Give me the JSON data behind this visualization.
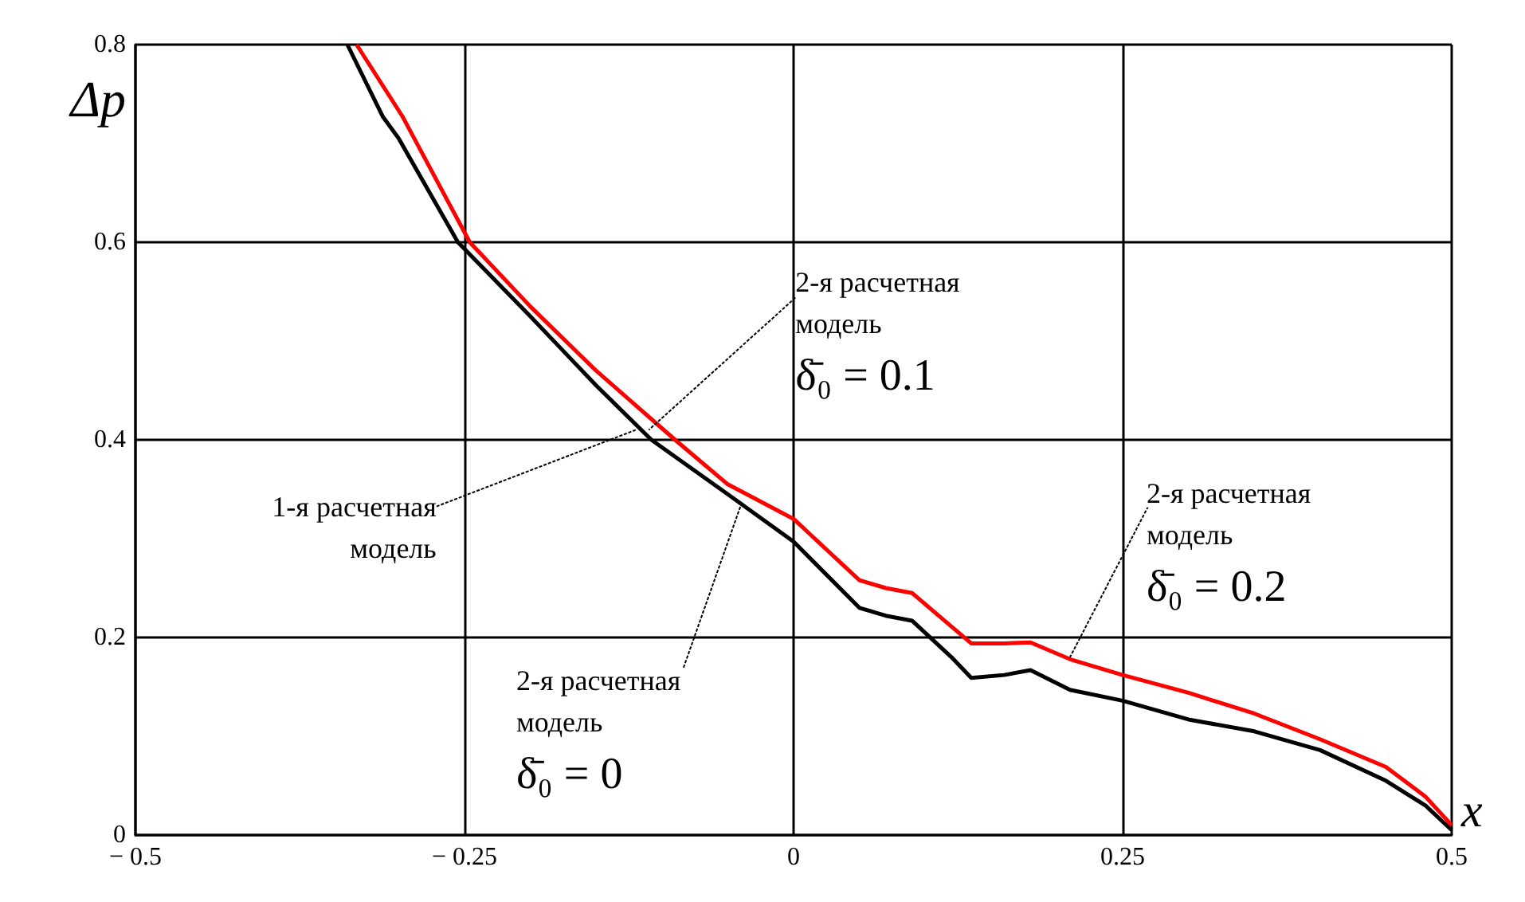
{
  "chart_data": {
    "type": "line",
    "xlabel": "x",
    "ylabel": "Δp",
    "xlim": [
      -0.5,
      0.5
    ],
    "ylim": [
      0,
      0.8
    ],
    "xticks": [
      {
        "value": -0.5,
        "label": "− 0.5"
      },
      {
        "value": -0.25,
        "label": "− 0.25"
      },
      0,
      0.25,
      0.5
    ],
    "yticks": [
      0,
      0.2,
      0.4,
      0.6,
      0.8
    ],
    "grid": true,
    "marker": "none",
    "line_style": "solid",
    "series": [
      {
        "color": "#000000",
        "x": [
          -0.339,
          -0.312,
          -0.3,
          -0.255,
          -0.2,
          -0.175,
          -0.15,
          -0.108,
          -0.05,
          0,
          0.05,
          0.07,
          0.09,
          0.12,
          0.135,
          0.16,
          0.18,
          0.21,
          0.25,
          0.3,
          0.35,
          0.4,
          0.45,
          0.48,
          0.5
        ],
        "values": [
          0.8,
          0.727,
          0.705,
          0.6,
          0.525,
          0.49,
          0.455,
          0.4,
          0.345,
          0.297,
          0.23,
          0.222,
          0.217,
          0.18,
          0.159,
          0.162,
          0.167,
          0.147,
          0.136,
          0.117,
          0.105,
          0.086,
          0.055,
          0.03,
          0.005
        ]
      },
      {
        "color": "#ff0000",
        "x": [
          -0.332,
          -0.297,
          -0.246,
          -0.2,
          -0.15,
          -0.09,
          -0.05,
          0,
          0.05,
          0.07,
          0.09,
          0.12,
          0.135,
          0.16,
          0.18,
          0.21,
          0.25,
          0.3,
          0.35,
          0.4,
          0.45,
          0.48,
          0.5
        ],
        "values": [
          0.8,
          0.727,
          0.6,
          0.535,
          0.47,
          0.4,
          0.355,
          0.32,
          0.258,
          0.25,
          0.245,
          0.211,
          0.194,
          0.194,
          0.195,
          0.178,
          0.162,
          0.144,
          0.123,
          0.097,
          0.069,
          0.039,
          0.01
        ]
      }
    ],
    "annotations": [
      {
        "text": "1-я расчетная\nмодель",
        "x": -0.12,
        "y": 0.41
      },
      {
        "text": "2-я расчетная\nмодель\nδ̄₀ = 0.1",
        "x": -0.11,
        "y": 0.41
      },
      {
        "text": "2-я расчетная\nмодель\nδ̄₀ = 0",
        "x": -0.04,
        "y": 0.334
      },
      {
        "text": "2-я расчетная\nмодель\nδ̄₀ = 0.2",
        "x": 0.21,
        "y": 0.18
      }
    ]
  }
}
